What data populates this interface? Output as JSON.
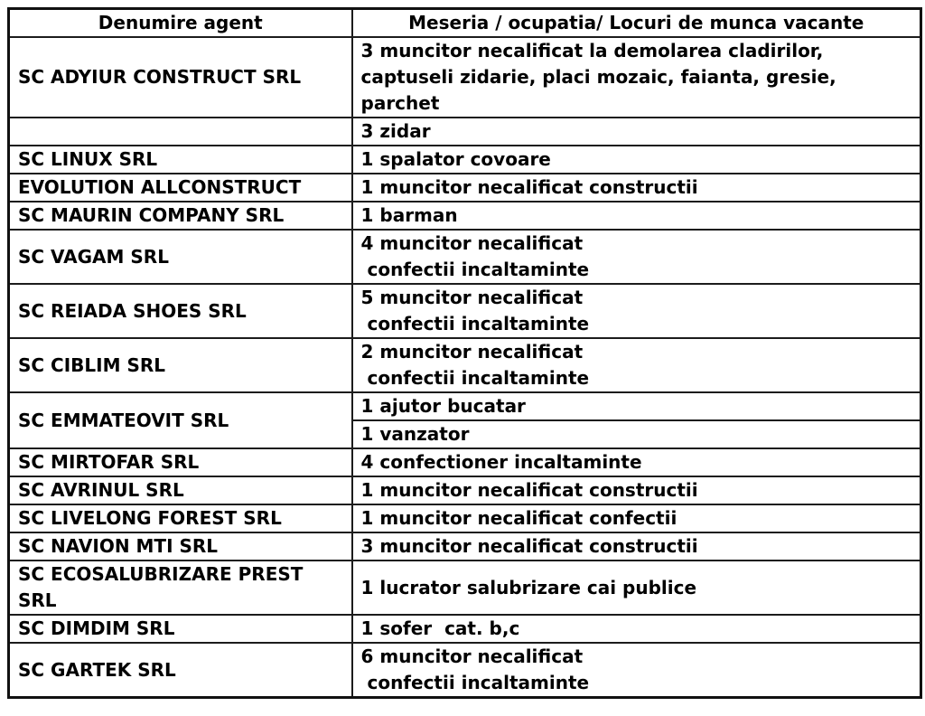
{
  "table": {
    "headers": {
      "agent": "Denumire agent",
      "jobs": "Meseria / ocupatia/ Locuri de munca vacante"
    },
    "rows": [
      {
        "agent": "SC ADYIUR CONSTRUCT SRL",
        "jobs": [
          "3 muncitor necalificat la demolarea cladirilor,\ncaptuseli zidarie, placi mozaic, faianta, gresie,\nparchet"
        ]
      },
      {
        "agent": "",
        "jobs": [
          "3 zidar"
        ]
      },
      {
        "agent": "SC LINUX SRL",
        "jobs": [
          "1 spalator covoare"
        ]
      },
      {
        "agent": "EVOLUTION ALLCONSTRUCT",
        "jobs": [
          "1 muncitor necalificat constructii"
        ]
      },
      {
        "agent": "SC MAURIN COMPANY SRL",
        "jobs": [
          "1 barman"
        ]
      },
      {
        "agent": "SC VAGAM SRL",
        "jobs": [
          "4 muncitor necalificat\n confectii incaltaminte"
        ]
      },
      {
        "agent": "SC REIADA SHOES SRL",
        "jobs": [
          "5 muncitor necalificat\n confectii incaltaminte"
        ]
      },
      {
        "agent": "SC CIBLIM SRL",
        "jobs": [
          "2 muncitor necalificat\n confectii incaltaminte"
        ]
      },
      {
        "agent": "SC EMMATEOVIT SRL",
        "jobs": [
          "1 ajutor bucatar",
          "1 vanzator"
        ]
      },
      {
        "agent": "SC MIRTOFAR SRL",
        "jobs": [
          "4 confectioner incaltaminte"
        ]
      },
      {
        "agent": "SC AVRINUL SRL",
        "jobs": [
          "1 muncitor necalificat constructii"
        ]
      },
      {
        "agent": "SC LIVELONG FOREST SRL",
        "jobs": [
          "1 muncitor necalificat confectii"
        ]
      },
      {
        "agent": "SC NAVION MTI SRL",
        "jobs": [
          "3 muncitor necalificat constructii"
        ]
      },
      {
        "agent": "SC ECOSALUBRIZARE PREST SRL",
        "jobs": [
          "1 lucrator salubrizare cai publice"
        ]
      },
      {
        "agent": "SC DIMDIM SRL",
        "jobs": [
          "1 sofer  cat. b,c"
        ]
      },
      {
        "agent": "SC GARTEK SRL",
        "jobs": [
          "6 muncitor necalificat\n confectii incaltaminte"
        ]
      }
    ]
  },
  "colors": {
    "border": "#1c1c1c",
    "text": "#000000",
    "background": "#ffffff"
  }
}
